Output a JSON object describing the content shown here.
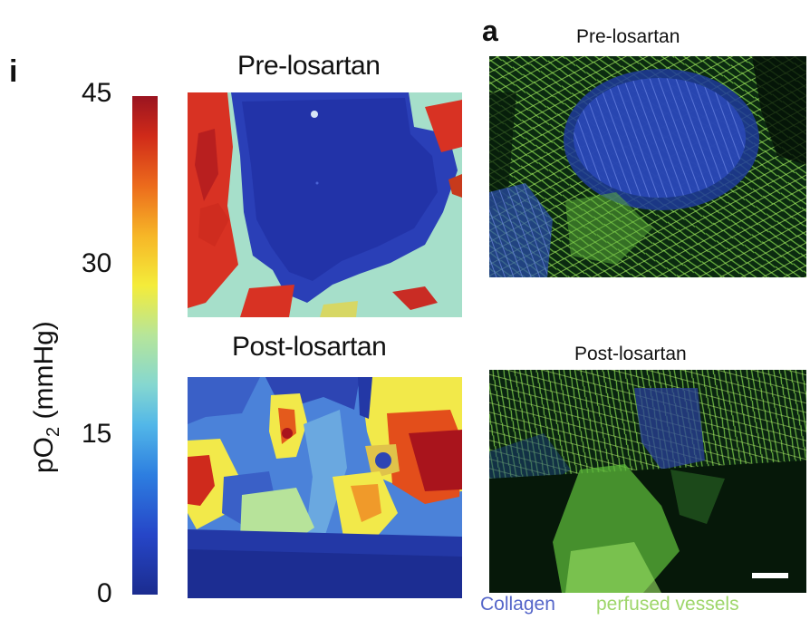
{
  "panel_i": {
    "letter": "i",
    "pre_title": "Pre-losartan",
    "post_title": "Post-losartan",
    "colorbar": {
      "label_main": "pO",
      "label_sub": "2",
      "label_unit": " (mmHg)",
      "ticks": [
        "45",
        "30",
        "15",
        "0"
      ],
      "range": [
        0,
        45
      ],
      "colors_low_to_high": [
        "#1b2c8f",
        "#2646c8",
        "#2d7ee0",
        "#52b7e8",
        "#85d7d0",
        "#b6e59a",
        "#f4ec3a",
        "#f6b627",
        "#ec6b1c",
        "#d02a19",
        "#9a1420"
      ]
    }
  },
  "panel_a": {
    "letter": "a",
    "pre_title": "Pre-losartan",
    "post_title": "Post-losartan",
    "legend": {
      "collagen": "Collagen",
      "vessels": "perfused vessels",
      "collagen_color": "#5566c9",
      "vessels_color": "#9ed66a"
    }
  }
}
